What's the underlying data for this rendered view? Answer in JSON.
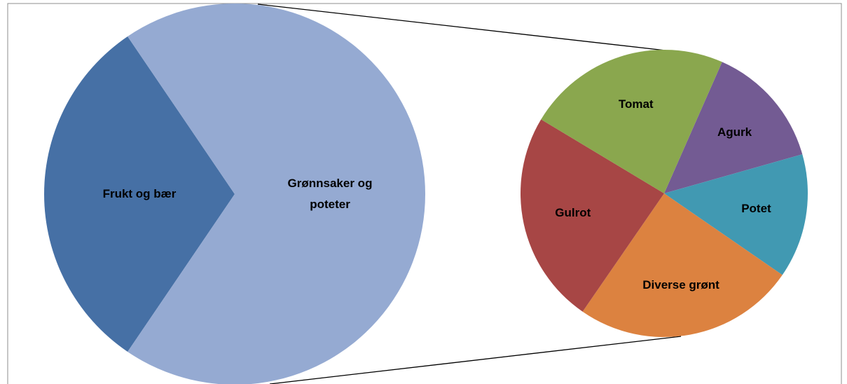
{
  "chart_data": [
    {
      "type": "pie",
      "categories": [
        "Frukt og bær",
        "Grønnsaker og poteter"
      ],
      "values": [
        31,
        69
      ],
      "colors": [
        "#4670a5",
        "#95aad2"
      ]
    },
    {
      "type": "pie",
      "categories": [
        "Agurk",
        "Potet",
        "Diverse grønt",
        "Gulrot",
        "Tomat"
      ],
      "values": [
        14,
        14,
        25,
        24,
        23
      ],
      "colors": [
        "#735b93",
        "#4199b2",
        "#dc8240",
        "#a74645",
        "#8aa74e"
      ]
    }
  ]
}
